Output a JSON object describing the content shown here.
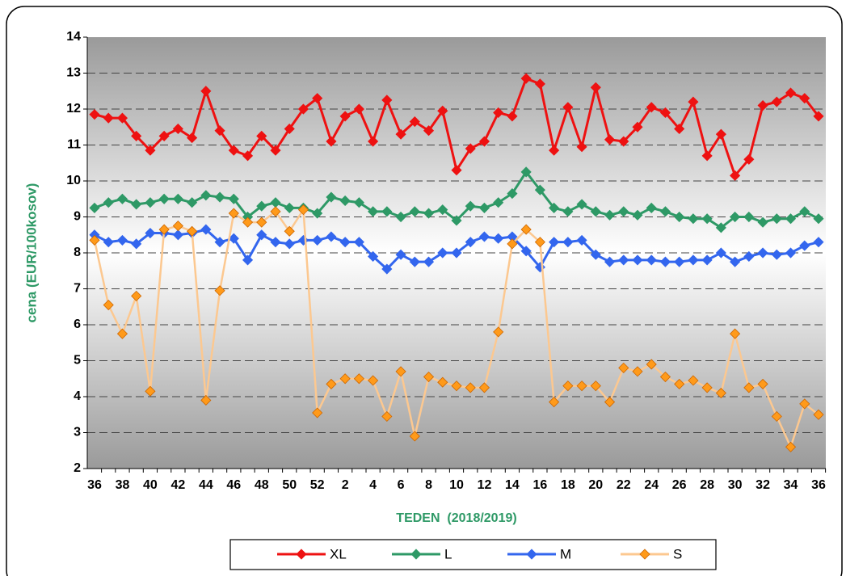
{
  "chart_data": {
    "type": "line",
    "x_label": "TEDEN  (2018/2019)",
    "y_label": "cena (EUR/100kosov)",
    "categories": [
      "36",
      null,
      "38",
      null,
      "40",
      null,
      "42",
      null,
      "44",
      null,
      "46",
      null,
      "48",
      null,
      "50",
      null,
      "52",
      null,
      "2",
      null,
      "4",
      null,
      "6",
      null,
      "8",
      null,
      "10",
      null,
      "12",
      null,
      "14",
      null,
      "16",
      null,
      "18",
      null,
      "20",
      null,
      "22",
      null,
      "24",
      null,
      "26",
      null,
      "28",
      null,
      "30",
      null,
      "32",
      null,
      "34",
      null,
      "36"
    ],
    "series": [
      {
        "name": "XL",
        "color": "#ee1111",
        "marker": "#ee1111",
        "values": [
          11.85,
          11.75,
          11.75,
          11.25,
          10.85,
          11.25,
          11.45,
          11.2,
          12.5,
          11.4,
          10.85,
          10.7,
          11.25,
          10.85,
          11.45,
          12.0,
          12.3,
          11.1,
          11.8,
          12.0,
          11.1,
          12.25,
          11.3,
          11.65,
          11.4,
          11.95,
          10.3,
          10.9,
          11.1,
          11.9,
          11.8,
          12.85,
          12.7,
          10.85,
          12.05,
          10.95,
          12.6,
          11.15,
          11.1,
          11.5,
          12.05,
          11.9,
          11.45,
          12.2,
          10.7,
          11.3,
          10.15,
          10.6,
          12.1,
          12.2,
          12.45,
          12.3,
          11.8
        ]
      },
      {
        "name": "L",
        "color": "#2e9966",
        "marker": "#2e9966",
        "values": [
          9.25,
          9.4,
          9.5,
          9.35,
          9.4,
          9.5,
          9.5,
          9.4,
          9.6,
          9.55,
          9.5,
          9.0,
          9.3,
          9.4,
          9.25,
          9.25,
          9.1,
          9.55,
          9.45,
          9.4,
          9.15,
          9.15,
          9.0,
          9.15,
          9.1,
          9.2,
          8.9,
          9.3,
          9.25,
          9.4,
          9.65,
          10.25,
          9.75,
          9.25,
          9.15,
          9.35,
          9.15,
          9.05,
          9.15,
          9.05,
          9.25,
          9.15,
          9.0,
          8.95,
          8.95,
          8.7,
          9.0,
          9.0,
          8.85,
          8.95,
          8.95,
          9.15,
          8.95
        ]
      },
      {
        "name": "M",
        "color": "#3366ee",
        "marker": "#3366ee",
        "values": [
          8.5,
          8.3,
          8.35,
          8.25,
          8.55,
          8.55,
          8.5,
          8.55,
          8.65,
          8.3,
          8.4,
          7.8,
          8.5,
          8.3,
          8.25,
          8.35,
          8.35,
          8.45,
          8.3,
          8.3,
          7.9,
          7.55,
          7.95,
          7.75,
          7.75,
          8.0,
          8.0,
          8.3,
          8.45,
          8.4,
          8.45,
          8.05,
          7.6,
          8.3,
          8.3,
          8.35,
          7.95,
          7.75,
          7.8,
          7.8,
          7.8,
          7.75,
          7.75,
          7.8,
          7.8,
          8.0,
          7.75,
          7.9,
          8.0,
          7.95,
          8.0,
          8.2,
          8.3
        ]
      },
      {
        "name": "S",
        "color": "#fcc890",
        "marker": "#ff9a1a",
        "values": [
          8.35,
          6.55,
          5.75,
          6.8,
          4.15,
          8.65,
          8.75,
          8.6,
          3.9,
          6.95,
          9.1,
          8.85,
          8.85,
          9.15,
          8.6,
          9.2,
          3.55,
          4.35,
          4.5,
          4.5,
          4.45,
          3.45,
          4.7,
          2.9,
          4.55,
          4.4,
          4.3,
          4.25,
          4.25,
          5.8,
          8.25,
          8.65,
          8.3,
          3.85,
          4.3,
          4.3,
          4.3,
          3.85,
          4.8,
          4.7,
          4.9,
          4.55,
          4.35,
          4.45,
          4.25,
          4.1,
          5.75,
          4.25,
          4.35,
          3.45,
          2.6,
          3.8,
          3.5
        ]
      }
    ],
    "ylim": [
      2,
      14
    ],
    "yticks": [
      2,
      3,
      4,
      5,
      6,
      7,
      8,
      9,
      10,
      11,
      12,
      13,
      14
    ],
    "grid": true,
    "legend": "bottom"
  }
}
